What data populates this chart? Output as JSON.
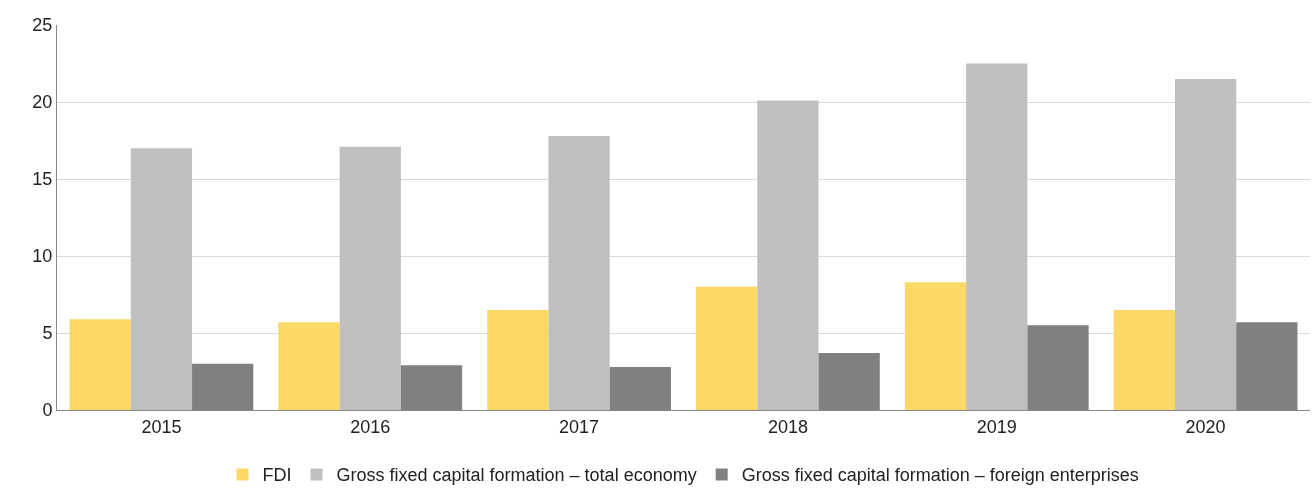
{
  "chart_data": {
    "type": "bar",
    "categories": [
      "2015",
      "2016",
      "2017",
      "2018",
      "2019",
      "2020"
    ],
    "series": [
      {
        "name": "FDI",
        "color": "#fdd866",
        "values": [
          5.9,
          5.7,
          6.5,
          8.0,
          8.3,
          6.5
        ]
      },
      {
        "name": "Gross fixed capital formation – total economy",
        "color": "#bfbfbf",
        "values": [
          17.0,
          17.1,
          17.8,
          20.1,
          22.5,
          21.5
        ]
      },
      {
        "name": "Gross fixed capital formation – foreign enterprises",
        "color": "#808080",
        "values": [
          3.0,
          2.9,
          2.8,
          3.7,
          5.5,
          5.7
        ]
      }
    ],
    "ylim": [
      0,
      25
    ],
    "yticks": [
      0,
      5,
      10,
      15,
      20,
      25
    ],
    "grid": "y",
    "legend": "bottom"
  }
}
